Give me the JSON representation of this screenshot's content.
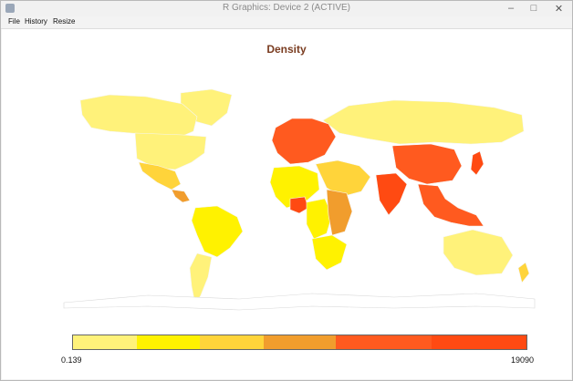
{
  "window": {
    "title": "R Graphics: Device 2 (ACTIVE)",
    "icons": {
      "app": "r-app-icon",
      "minimize": "minimize-icon",
      "maximize": "maximize-icon",
      "close": "close-icon"
    }
  },
  "menu": {
    "items": [
      {
        "label": "File"
      },
      {
        "label": "History"
      },
      {
        "label": "Resize"
      }
    ]
  },
  "chart_data": {
    "type": "choropleth",
    "title": "Density",
    "legend": {
      "min_label": "0.139",
      "max_label": "19090",
      "colors": [
        "#fff27a",
        "#fff200",
        "#ffd43a",
        "#f19d2d",
        "#ff5a1f",
        "#ff4a12"
      ],
      "placement": "bottom"
    },
    "regions": [
      {
        "name": "Canada",
        "color": "#fff27a"
      },
      {
        "name": "United States",
        "color": "#fff27a"
      },
      {
        "name": "Mexico",
        "color": "#ffd43a"
      },
      {
        "name": "Central America",
        "color": "#f19d2d"
      },
      {
        "name": "Brazil",
        "color": "#fff200"
      },
      {
        "name": "Argentina",
        "color": "#fff27a"
      },
      {
        "name": "Greenland",
        "color": "#fff27a"
      },
      {
        "name": "Russia",
        "color": "#fff27a"
      },
      {
        "name": "Europe",
        "color": "#ff5a1f"
      },
      {
        "name": "West Africa",
        "color": "#fff200"
      },
      {
        "name": "Nigeria",
        "color": "#ff4a12"
      },
      {
        "name": "Central Africa",
        "color": "#fff200"
      },
      {
        "name": "East Africa",
        "color": "#f19d2d"
      },
      {
        "name": "Southern Africa",
        "color": "#fff200"
      },
      {
        "name": "Middle East",
        "color": "#ffd43a"
      },
      {
        "name": "India",
        "color": "#ff4a12"
      },
      {
        "name": "China",
        "color": "#ff5a1f"
      },
      {
        "name": "Southeast Asia",
        "color": "#ff5a1f"
      },
      {
        "name": "Japan",
        "color": "#ff4a12"
      },
      {
        "name": "Australia",
        "color": "#fff27a"
      },
      {
        "name": "New Zealand",
        "color": "#ffd43a"
      },
      {
        "name": "Antarctica",
        "color": "#ffffff"
      }
    ]
  }
}
